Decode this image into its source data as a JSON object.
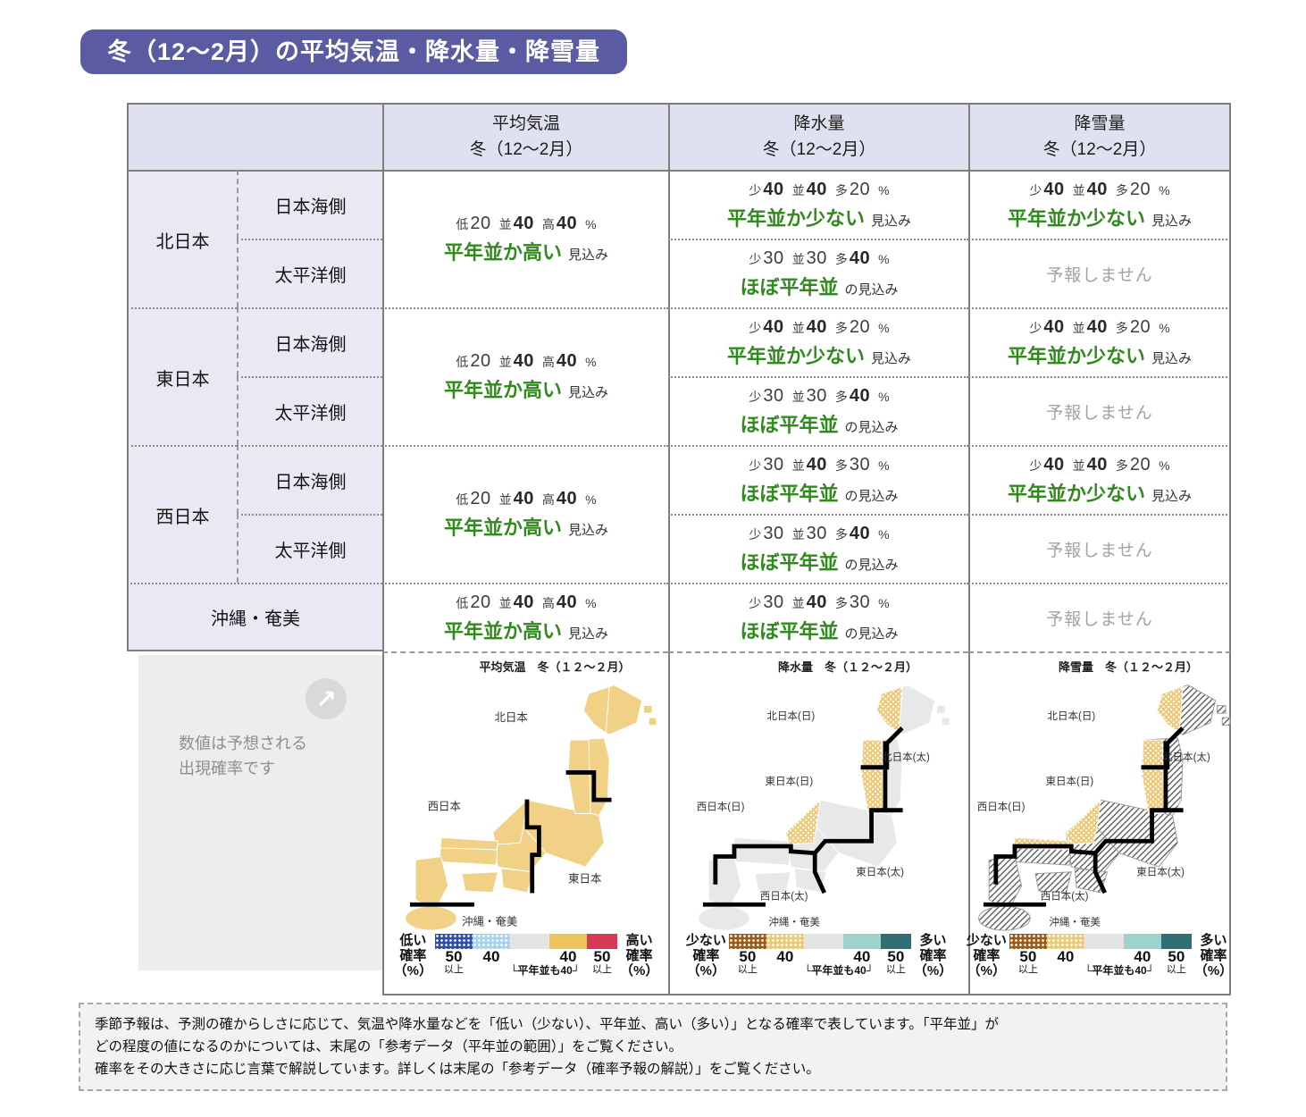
{
  "title": "冬（12～2月）の平均気温・降水量・降雪量",
  "table": {
    "headers": [
      {
        "line1": "平均気温",
        "line2": "冬（12～2月）"
      },
      {
        "line1": "降水量",
        "line2": "冬（12～2月）"
      },
      {
        "line1": "降雪量",
        "line2": "冬（12～2月）"
      }
    ],
    "groups": [
      {
        "region": "北日本",
        "temp": {
          "probs": [
            [
              "低",
              "20",
              false
            ],
            [
              "並",
              "40",
              true
            ],
            [
              "高",
              "40",
              true
            ]
          ],
          "summary": "平年並か高い",
          "suffix": "見込み"
        },
        "rows": [
          {
            "side": "日本海側",
            "precip": {
              "probs": [
                [
                  "少",
                  "40",
                  true
                ],
                [
                  "並",
                  "40",
                  true
                ],
                [
                  "多",
                  "20",
                  false
                ]
              ],
              "summary": "平年並か少ない",
              "suffix": "見込み"
            },
            "snow": {
              "probs": [
                [
                  "少",
                  "40",
                  true
                ],
                [
                  "並",
                  "40",
                  true
                ],
                [
                  "多",
                  "20",
                  false
                ]
              ],
              "summary": "平年並か少ない",
              "suffix": "見込み"
            }
          },
          {
            "side": "太平洋側",
            "precip": {
              "probs": [
                [
                  "少",
                  "30",
                  false
                ],
                [
                  "並",
                  "30",
                  false
                ],
                [
                  "多",
                  "40",
                  true
                ]
              ],
              "summary": "ほぼ平年並",
              "suffix": "の見込み"
            },
            "snow": {
              "no_forecast": "予報しません"
            }
          }
        ]
      },
      {
        "region": "東日本",
        "temp": {
          "probs": [
            [
              "低",
              "20",
              false
            ],
            [
              "並",
              "40",
              true
            ],
            [
              "高",
              "40",
              true
            ]
          ],
          "summary": "平年並か高い",
          "suffix": "見込み"
        },
        "rows": [
          {
            "side": "日本海側",
            "precip": {
              "probs": [
                [
                  "少",
                  "40",
                  true
                ],
                [
                  "並",
                  "40",
                  true
                ],
                [
                  "多",
                  "20",
                  false
                ]
              ],
              "summary": "平年並か少ない",
              "suffix": "見込み"
            },
            "snow": {
              "probs": [
                [
                  "少",
                  "40",
                  true
                ],
                [
                  "並",
                  "40",
                  true
                ],
                [
                  "多",
                  "20",
                  false
                ]
              ],
              "summary": "平年並か少ない",
              "suffix": "見込み"
            }
          },
          {
            "side": "太平洋側",
            "precip": {
              "probs": [
                [
                  "少",
                  "30",
                  false
                ],
                [
                  "並",
                  "30",
                  false
                ],
                [
                  "多",
                  "40",
                  true
                ]
              ],
              "summary": "ほぼ平年並",
              "suffix": "の見込み"
            },
            "snow": {
              "no_forecast": "予報しません"
            }
          }
        ]
      },
      {
        "region": "西日本",
        "temp": {
          "probs": [
            [
              "低",
              "20",
              false
            ],
            [
              "並",
              "40",
              true
            ],
            [
              "高",
              "40",
              true
            ]
          ],
          "summary": "平年並か高い",
          "suffix": "見込み"
        },
        "rows": [
          {
            "side": "日本海側",
            "precip": {
              "probs": [
                [
                  "少",
                  "30",
                  false
                ],
                [
                  "並",
                  "40",
                  true
                ],
                [
                  "多",
                  "30",
                  false
                ]
              ],
              "summary": "ほぼ平年並",
              "suffix": "の見込み"
            },
            "snow": {
              "probs": [
                [
                  "少",
                  "40",
                  true
                ],
                [
                  "並",
                  "40",
                  true
                ],
                [
                  "多",
                  "20",
                  false
                ]
              ],
              "summary": "平年並か少ない",
              "suffix": "見込み"
            }
          },
          {
            "side": "太平洋側",
            "precip": {
              "probs": [
                [
                  "少",
                  "30",
                  false
                ],
                [
                  "並",
                  "30",
                  false
                ],
                [
                  "多",
                  "40",
                  true
                ]
              ],
              "summary": "ほぼ平年並",
              "suffix": "の見込み"
            },
            "snow": {
              "no_forecast": "予報しません"
            }
          }
        ]
      }
    ],
    "okinawa": {
      "region": "沖縄・奄美",
      "temp": {
        "probs": [
          [
            "低",
            "20",
            false
          ],
          [
            "並",
            "40",
            true
          ],
          [
            "高",
            "40",
            true
          ]
        ],
        "summary": "平年並か高い",
        "suffix": "見込み"
      },
      "precip": {
        "probs": [
          [
            "少",
            "30",
            false
          ],
          [
            "並",
            "40",
            true
          ],
          [
            "多",
            "30",
            false
          ]
        ],
        "summary": "ほぼ平年並",
        "suffix": "の見込み"
      },
      "snow": {
        "no_forecast": "予報しません"
      }
    }
  },
  "info_panel": {
    "line1": "数値は予想される",
    "line2": "出現確率です",
    "icon": "arrow-up-right-icon",
    "arrow_glyph": "↗"
  },
  "map_colors": {
    "land_yellow": "#f1d185",
    "land_gray": "#e8e8e8",
    "dot_yellow": "#ecc979",
    "outline_white": "#ffffff",
    "divider_black": "#000000"
  },
  "maps": [
    {
      "title": "平均気温　冬（１２～２月）",
      "region_labels": [
        "北日本",
        "西日本",
        "東日本",
        "沖縄・奄美"
      ],
      "legend": {
        "left": [
          "低い",
          "確率",
          "（%）"
        ],
        "right": [
          "高い",
          "確率",
          "（%）"
        ],
        "colors": [
          "#2e4fb0",
          "#a6d2ee",
          "#e4e4e4",
          "#eec45f",
          "#d43a55"
        ],
        "dotted": [
          true,
          true,
          false,
          false,
          false
        ],
        "tick_top": [
          "50",
          "40",
          "",
          "40",
          "50"
        ],
        "tick_bottom": [
          "以上",
          "",
          "└平年並も40┘",
          "",
          "以上"
        ]
      }
    },
    {
      "title": "降水量　冬（１２～２月）",
      "region_labels": [
        "北日本(日)",
        "北日本(太)",
        "東日本(日)",
        "西日本(日)",
        "東日本(太)",
        "西日本(太)",
        "沖縄・奄美"
      ],
      "legend": {
        "left": [
          "少ない",
          "確率",
          "（%）"
        ],
        "right": [
          "多い",
          "確率",
          "（%）"
        ],
        "colors": [
          "#9c5c17",
          "#ecca75",
          "#e4e4e4",
          "#9ed3cd",
          "#2e6f74"
        ],
        "dotted": [
          true,
          true,
          false,
          false,
          false
        ],
        "tick_top": [
          "50",
          "40",
          "",
          "40",
          "50"
        ],
        "tick_bottom": [
          "以上",
          "",
          "└平年並も40┘",
          "",
          "以上"
        ]
      }
    },
    {
      "title": "降雪量　冬（１２～２月）",
      "region_labels": [
        "北日本(日)",
        "北日本(太)",
        "東日本(日)",
        "西日本(日)",
        "東日本(太)",
        "西日本(太)",
        "沖縄・奄美"
      ],
      "legend": {
        "left": [
          "少ない",
          "確率",
          "（%）"
        ],
        "right": [
          "多い",
          "確率",
          "（%）"
        ],
        "colors": [
          "#9c5c17",
          "#ecca75",
          "#e4e4e4",
          "#9ed3cd",
          "#2e6f74"
        ],
        "dotted": [
          true,
          true,
          false,
          false,
          false
        ],
        "tick_top": [
          "50",
          "40",
          "",
          "40",
          "50"
        ],
        "tick_bottom": [
          "以上",
          "",
          "└平年並も40┘",
          "",
          "以上"
        ]
      }
    }
  ],
  "footer": {
    "lines": [
      "季節予報は、予測の確からしさに応じて、気温や降水量などを「低い（少ない）、平年並、高い（多い）」となる確率で表しています。「平年並」が",
      "どの程度の値になるのかについては、末尾の「参考データ（平年並の範囲）」をご覧ください。",
      "確率をその大きさに応じ言葉で解説しています。詳しくは末尾の「参考データ（確率予報の解説）」をご覧ください。"
    ]
  }
}
